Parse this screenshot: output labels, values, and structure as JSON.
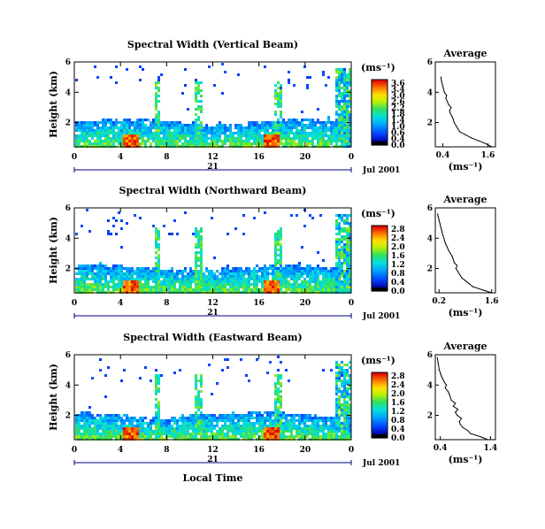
{
  "chart_data": [
    {
      "type": "heatmap",
      "title": "Spectral Width (Vertical Beam)",
      "ylabel": "Height (km)",
      "x_ticks": [
        "0",
        "4",
        "8",
        "12",
        "16",
        "20",
        "0"
      ],
      "y_ticks": [
        "6",
        "4",
        "2"
      ],
      "xlim": [
        0,
        24
      ],
      "ylim": [
        0.4,
        6
      ],
      "colorbar": {
        "unit": "(ms⁻¹)",
        "ticks": [
          "3.6",
          "3.4",
          "3.0",
          "2.6",
          "2.2",
          "1.8",
          "1.4",
          "1.0",
          "0.6",
          "0.4",
          "0.0"
        ],
        "range": [
          0,
          3.6
        ]
      },
      "timeline": {
        "day": "21",
        "date": "Jul 2001"
      },
      "average_profile": {
        "title": "Average",
        "xlabel": "(ms⁻¹)",
        "x_ticks": [
          "0.4",
          "1.6"
        ],
        "y_ticks": [
          "6",
          "4",
          "2"
        ],
        "xlim": [
          0.2,
          1.8
        ],
        "ylim": [
          0.4,
          6
        ],
        "heights": [
          0.4,
          0.6,
          0.8,
          1.0,
          1.2,
          1.4,
          1.6,
          1.8,
          2.0,
          2.2,
          2.4,
          2.6,
          2.8,
          3.0,
          3.2,
          3.4,
          3.6,
          3.8,
          4.0,
          4.2,
          4.4,
          4.6,
          4.8,
          5.0
        ],
        "values": [
          1.7,
          1.55,
          1.35,
          1.15,
          1.0,
          0.85,
          0.8,
          0.75,
          0.7,
          0.68,
          0.65,
          0.6,
          0.58,
          0.62,
          0.55,
          0.52,
          0.48,
          0.5,
          0.44,
          0.42,
          0.4,
          0.38,
          0.36,
          0.35
        ]
      }
    },
    {
      "type": "heatmap",
      "title": "Spectral Width (Northward Beam)",
      "ylabel": "Height (km)",
      "x_ticks": [
        "0",
        "4",
        "8",
        "12",
        "16",
        "20",
        "0"
      ],
      "y_ticks": [
        "6",
        "4",
        "2"
      ],
      "xlim": [
        0,
        24
      ],
      "ylim": [
        0.4,
        6
      ],
      "colorbar": {
        "unit": "(ms⁻¹)",
        "ticks": [
          "2.8",
          "2.4",
          "2.0",
          "1.6",
          "1.2",
          "0.8",
          "0.4",
          "0.0"
        ],
        "range": [
          0,
          2.8
        ]
      },
      "timeline": {
        "day": "21",
        "date": "Jul 2001"
      },
      "average_profile": {
        "title": "Average",
        "xlabel": "(ms⁻¹)",
        "x_ticks": [
          "0.2",
          "1.6"
        ],
        "y_ticks": [
          "6",
          "4",
          "2"
        ],
        "xlim": [
          0.1,
          1.7
        ],
        "ylim": [
          0.4,
          6
        ],
        "heights": [
          0.4,
          0.6,
          0.8,
          1.0,
          1.2,
          1.4,
          1.6,
          1.8,
          2.0,
          2.2,
          2.4,
          2.6,
          2.8,
          3.0,
          3.2,
          3.4,
          3.6,
          3.8,
          4.0,
          4.2,
          4.4,
          4.6,
          4.8,
          5.0,
          5.2,
          5.4,
          5.6
        ],
        "values": [
          1.6,
          1.35,
          1.1,
          1.0,
          0.9,
          0.8,
          0.75,
          0.7,
          0.65,
          0.68,
          0.6,
          0.58,
          0.55,
          0.5,
          0.45,
          0.42,
          0.38,
          0.35,
          0.33,
          0.3,
          0.28,
          0.26,
          0.24,
          0.22,
          0.2,
          0.18,
          0.16
        ]
      }
    },
    {
      "type": "heatmap",
      "title": "Spectral Width (Eastward Beam)",
      "ylabel": "Height (km)",
      "xlabel": "Local Time",
      "x_ticks": [
        "0",
        "4",
        "8",
        "12",
        "16",
        "20",
        "0"
      ],
      "y_ticks": [
        "6",
        "4",
        "2"
      ],
      "xlim": [
        0,
        24
      ],
      "ylim": [
        0.4,
        6
      ],
      "colorbar": {
        "unit": "(ms⁻¹)",
        "ticks": [
          "2.8",
          "2.4",
          "2.0",
          "1.6",
          "1.2",
          "0.8",
          "0.4",
          "0.0"
        ],
        "range": [
          0,
          2.8
        ]
      },
      "timeline": {
        "day": "21",
        "date": "Jul 2001"
      },
      "average_profile": {
        "title": "Average",
        "xlabel": "(ms⁻¹)",
        "x_ticks": [
          "0.4",
          "1.4"
        ],
        "y_ticks": [
          "6",
          "4",
          "2"
        ],
        "xlim": [
          0.3,
          1.5
        ],
        "ylim": [
          0.4,
          6
        ],
        "heights": [
          0.4,
          0.6,
          0.8,
          1.0,
          1.2,
          1.4,
          1.6,
          1.8,
          2.0,
          2.2,
          2.4,
          2.6,
          2.8,
          3.0,
          3.2,
          3.4,
          3.6,
          3.8,
          4.0,
          4.2,
          4.4,
          4.6,
          4.8,
          5.0,
          5.4,
          5.8
        ],
        "values": [
          1.35,
          1.2,
          1.0,
          0.95,
          0.85,
          0.8,
          0.78,
          0.82,
          0.74,
          0.7,
          0.75,
          0.66,
          0.7,
          0.62,
          0.6,
          0.58,
          0.55,
          0.5,
          0.52,
          0.48,
          0.45,
          0.42,
          0.4,
          0.38,
          0.36,
          0.34
        ]
      }
    }
  ]
}
